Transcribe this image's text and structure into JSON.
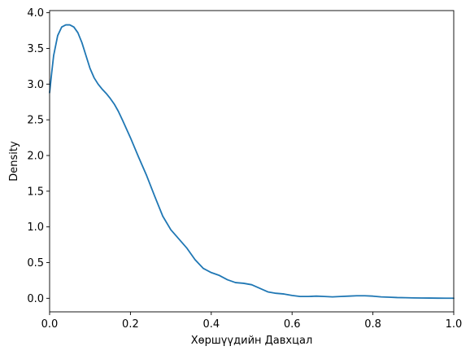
{
  "chart_data": {
    "type": "line",
    "title": "",
    "xlabel": "Хөршүүдийн Давхцал",
    "ylabel": "Density",
    "xlim": [
      0.0,
      1.0
    ],
    "ylim": [
      -0.19,
      4.03
    ],
    "x_ticks": [
      0.0,
      0.2,
      0.4,
      0.6,
      0.8,
      1.0
    ],
    "x_tick_labels": [
      "0.0",
      "0.2",
      "0.4",
      "0.6",
      "0.8",
      "1.0"
    ],
    "y_ticks": [
      0.0,
      0.5,
      1.0,
      1.5,
      2.0,
      2.5,
      3.0,
      3.5,
      4.0
    ],
    "y_tick_labels": [
      "0.0",
      "0.5",
      "1.0",
      "1.5",
      "2.0",
      "2.5",
      "3.0",
      "3.5",
      "4.0"
    ],
    "grid": false,
    "legend": "none",
    "series": [
      {
        "color": "#1f77b4",
        "x": [
          0.0,
          0.005,
          0.01,
          0.02,
          0.03,
          0.04,
          0.05,
          0.06,
          0.07,
          0.08,
          0.09,
          0.1,
          0.11,
          0.12,
          0.13,
          0.14,
          0.15,
          0.16,
          0.17,
          0.18,
          0.2,
          0.22,
          0.24,
          0.26,
          0.28,
          0.3,
          0.32,
          0.34,
          0.36,
          0.38,
          0.4,
          0.42,
          0.44,
          0.46,
          0.48,
          0.5,
          0.52,
          0.54,
          0.56,
          0.58,
          0.6,
          0.62,
          0.64,
          0.66,
          0.68,
          0.7,
          0.72,
          0.74,
          0.76,
          0.78,
          0.8,
          0.82,
          0.84,
          0.86,
          0.88,
          0.9,
          0.92,
          0.94,
          0.96,
          0.98,
          1.0
        ],
        "y": [
          2.88,
          3.15,
          3.4,
          3.68,
          3.8,
          3.83,
          3.83,
          3.8,
          3.72,
          3.58,
          3.4,
          3.22,
          3.09,
          3.0,
          2.93,
          2.87,
          2.8,
          2.72,
          2.62,
          2.5,
          2.25,
          1.98,
          1.72,
          1.43,
          1.15,
          0.96,
          0.83,
          0.7,
          0.54,
          0.42,
          0.36,
          0.32,
          0.26,
          0.22,
          0.21,
          0.19,
          0.14,
          0.09,
          0.07,
          0.06,
          0.04,
          0.025,
          0.025,
          0.03,
          0.025,
          0.02,
          0.025,
          0.03,
          0.035,
          0.035,
          0.03,
          0.02,
          0.015,
          0.01,
          0.008,
          0.005,
          0.004,
          0.003,
          0.002,
          0.001,
          0.001
        ]
      }
    ]
  }
}
